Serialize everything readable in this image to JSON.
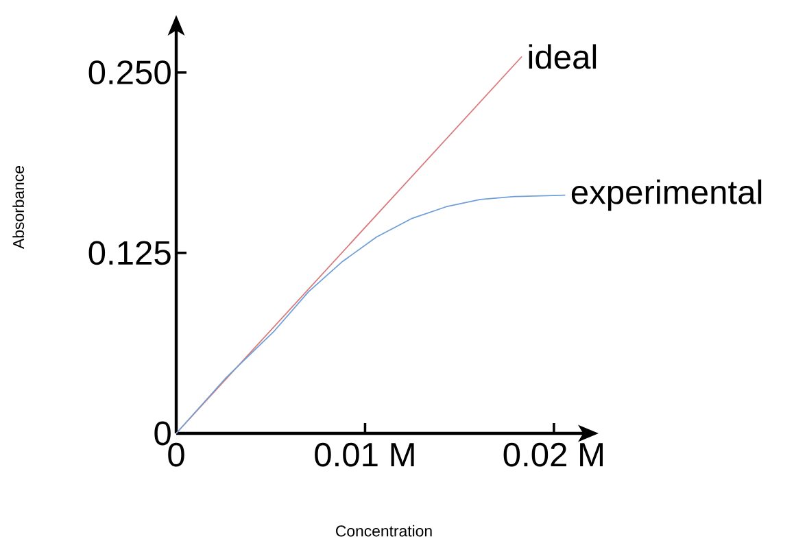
{
  "chart_data": {
    "type": "line",
    "xlabel": "Concentration",
    "ylabel": "Absorbance",
    "xlim": [
      0,
      0.022
    ],
    "ylim": [
      0,
      0.285
    ],
    "xticks": [
      0,
      {
        "value": 0.01,
        "label": "0.01 M"
      },
      {
        "value": 0.02,
        "label": "0.02 M"
      }
    ],
    "yticks": [
      0,
      0.125,
      {
        "value": 0.25,
        "label": "0.250"
      }
    ],
    "marker": "none",
    "line_style": "solid",
    "series": [
      {
        "name": "ideal",
        "color": "#d9787a",
        "x": [
          0,
          0.0183
        ],
        "values": [
          0,
          0.261
        ]
      },
      {
        "name": "experimental",
        "color": "#6f9fd8",
        "x": [
          0,
          0.0026,
          0.0052,
          0.007,
          0.0088,
          0.0106,
          0.0125,
          0.0143,
          0.0161,
          0.0179,
          0.0206
        ],
        "values": [
          0,
          0.038,
          0.071,
          0.098,
          0.119,
          0.136,
          0.149,
          0.157,
          0.162,
          0.164,
          0.165
        ]
      }
    ]
  }
}
